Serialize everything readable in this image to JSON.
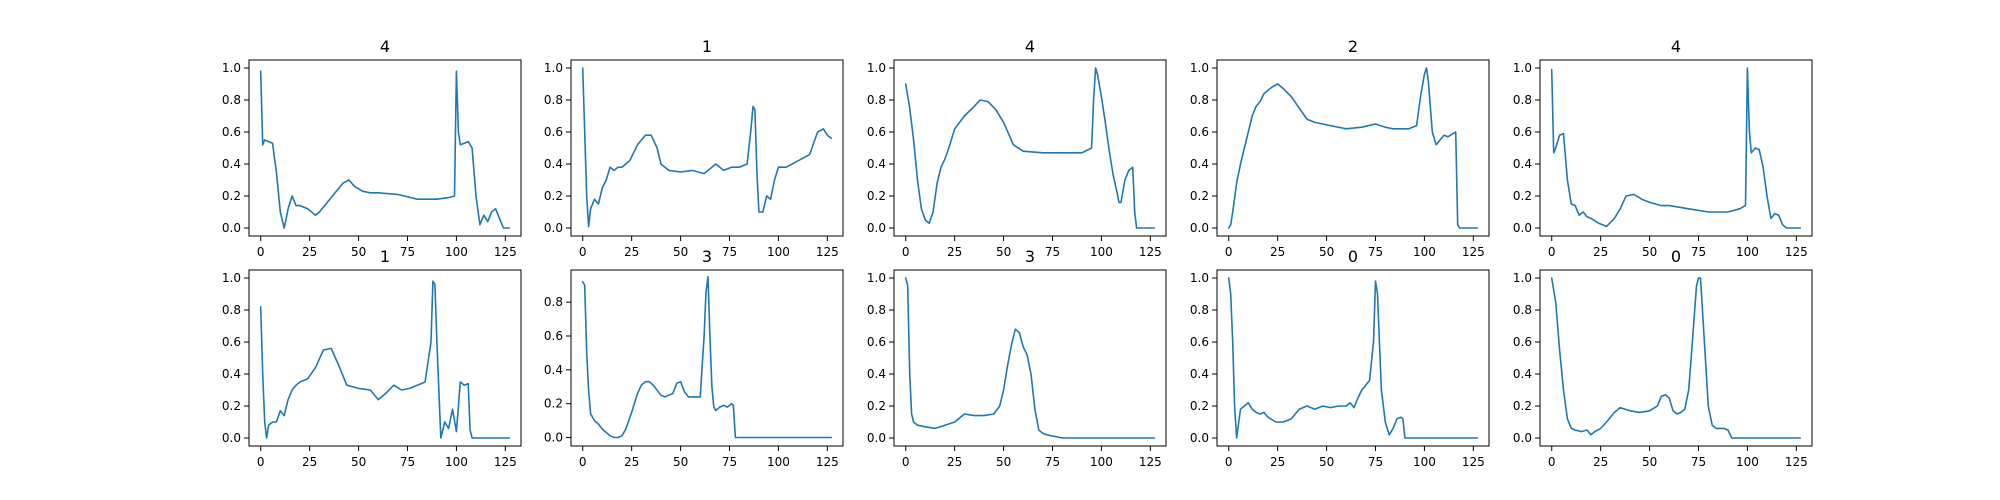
{
  "figure": {
    "line_color": "#1f77b4",
    "background": "#ffffff"
  },
  "chart_data": [
    {
      "type": "line",
      "title": "4",
      "xlim": [
        -6,
        133
      ],
      "ylim": [
        -0.05,
        1.05
      ],
      "xticks": [
        0,
        25,
        50,
        75,
        100,
        125
      ],
      "yticks": [
        0.0,
        0.2,
        0.4,
        0.6,
        0.8,
        1.0
      ],
      "series": [
        {
          "x": [
            0,
            1,
            2,
            4,
            6,
            8,
            10,
            12,
            13,
            14,
            16,
            18,
            20,
            24,
            28,
            30,
            34,
            38,
            42,
            45,
            48,
            52,
            56,
            60,
            70,
            80,
            90,
            96,
            99,
            100,
            101,
            102,
            104,
            106,
            108,
            110,
            112,
            114,
            116,
            118,
            120,
            122,
            124,
            127
          ],
          "y": [
            0.98,
            0.52,
            0.55,
            0.54,
            0.53,
            0.35,
            0.1,
            0.0,
            0.06,
            0.12,
            0.2,
            0.14,
            0.14,
            0.12,
            0.08,
            0.1,
            0.16,
            0.22,
            0.28,
            0.3,
            0.26,
            0.23,
            0.22,
            0.22,
            0.21,
            0.18,
            0.18,
            0.19,
            0.2,
            0.98,
            0.6,
            0.52,
            0.53,
            0.54,
            0.5,
            0.2,
            0.02,
            0.08,
            0.04,
            0.1,
            0.12,
            0.06,
            0.0,
            0.0
          ]
        }
      ]
    },
    {
      "type": "line",
      "title": "1",
      "xlim": [
        -6,
        133
      ],
      "ylim": [
        -0.05,
        1.05
      ],
      "xticks": [
        0,
        25,
        50,
        75,
        100,
        125
      ],
      "yticks": [
        0.0,
        0.2,
        0.4,
        0.6,
        0.8,
        1.0
      ],
      "series": [
        {
          "x": [
            0,
            1,
            2,
            3,
            4,
            6,
            8,
            10,
            12,
            14,
            16,
            18,
            20,
            24,
            28,
            32,
            35,
            38,
            40,
            44,
            50,
            56,
            62,
            68,
            72,
            76,
            80,
            84,
            86,
            87,
            88,
            89,
            90,
            92,
            94,
            96,
            98,
            100,
            104,
            110,
            116,
            120,
            123,
            125,
            127
          ],
          "y": [
            1.0,
            0.6,
            0.2,
            0.01,
            0.12,
            0.18,
            0.15,
            0.25,
            0.3,
            0.38,
            0.36,
            0.38,
            0.38,
            0.42,
            0.52,
            0.58,
            0.58,
            0.5,
            0.4,
            0.36,
            0.35,
            0.36,
            0.34,
            0.4,
            0.36,
            0.38,
            0.38,
            0.4,
            0.62,
            0.76,
            0.74,
            0.35,
            0.1,
            0.1,
            0.2,
            0.18,
            0.3,
            0.38,
            0.38,
            0.42,
            0.46,
            0.6,
            0.62,
            0.58,
            0.56
          ]
        }
      ]
    },
    {
      "type": "line",
      "title": "4",
      "xlim": [
        -6,
        133
      ],
      "ylim": [
        -0.05,
        1.05
      ],
      "xticks": [
        0,
        25,
        50,
        75,
        100,
        125
      ],
      "yticks": [
        0.0,
        0.2,
        0.4,
        0.6,
        0.8,
        1.0
      ],
      "series": [
        {
          "x": [
            0,
            2,
            4,
            6,
            8,
            10,
            12,
            14,
            16,
            18,
            20,
            22,
            25,
            30,
            35,
            38,
            42,
            46,
            50,
            55,
            60,
            70,
            80,
            90,
            95,
            96,
            97,
            98,
            100,
            102,
            104,
            106,
            108,
            109,
            110,
            112,
            114,
            116,
            117,
            118,
            120,
            124,
            127
          ],
          "y": [
            0.9,
            0.75,
            0.55,
            0.3,
            0.12,
            0.05,
            0.03,
            0.1,
            0.28,
            0.38,
            0.43,
            0.5,
            0.62,
            0.7,
            0.76,
            0.8,
            0.79,
            0.74,
            0.66,
            0.52,
            0.48,
            0.47,
            0.47,
            0.47,
            0.5,
            0.8,
            1.0,
            0.96,
            0.82,
            0.66,
            0.48,
            0.33,
            0.22,
            0.16,
            0.16,
            0.3,
            0.36,
            0.38,
            0.1,
            0.0,
            0.0,
            0.0,
            0.0
          ]
        }
      ]
    },
    {
      "type": "line",
      "title": "2",
      "xlim": [
        -6,
        133
      ],
      "ylim": [
        -0.05,
        1.05
      ],
      "xticks": [
        0,
        25,
        50,
        75,
        100,
        125
      ],
      "yticks": [
        0.0,
        0.2,
        0.4,
        0.6,
        0.8,
        1.0
      ],
      "series": [
        {
          "x": [
            0,
            1,
            2,
            4,
            6,
            8,
            10,
            12,
            14,
            16,
            18,
            20,
            22,
            25,
            28,
            32,
            36,
            40,
            44,
            48,
            52,
            60,
            68,
            75,
            80,
            84,
            88,
            92,
            96,
            98,
            100,
            101,
            102,
            104,
            106,
            110,
            112,
            116,
            117,
            118,
            120,
            124,
            127
          ],
          "y": [
            0.0,
            0.02,
            0.1,
            0.28,
            0.4,
            0.5,
            0.6,
            0.7,
            0.76,
            0.79,
            0.84,
            0.86,
            0.88,
            0.9,
            0.87,
            0.82,
            0.75,
            0.68,
            0.66,
            0.65,
            0.64,
            0.62,
            0.63,
            0.65,
            0.63,
            0.62,
            0.62,
            0.62,
            0.64,
            0.82,
            0.96,
            1.0,
            0.92,
            0.6,
            0.52,
            0.58,
            0.57,
            0.6,
            0.02,
            0.0,
            0.0,
            0.0,
            0.0
          ]
        }
      ]
    },
    {
      "type": "line",
      "title": "4",
      "xlim": [
        -6,
        133
      ],
      "ylim": [
        -0.05,
        1.05
      ],
      "xticks": [
        0,
        25,
        50,
        75,
        100,
        125
      ],
      "yticks": [
        0.0,
        0.2,
        0.4,
        0.6,
        0.8,
        1.0
      ],
      "series": [
        {
          "x": [
            0,
            1,
            2,
            4,
            6,
            8,
            10,
            12,
            14,
            16,
            18,
            20,
            24,
            28,
            32,
            35,
            38,
            42,
            46,
            50,
            56,
            60,
            70,
            80,
            90,
            96,
            99,
            100,
            101,
            102,
            104,
            106,
            108,
            110,
            112,
            114,
            116,
            118,
            120,
            124,
            127
          ],
          "y": [
            0.99,
            0.47,
            0.5,
            0.58,
            0.59,
            0.3,
            0.15,
            0.14,
            0.08,
            0.1,
            0.07,
            0.06,
            0.03,
            0.01,
            0.06,
            0.12,
            0.2,
            0.21,
            0.18,
            0.16,
            0.14,
            0.14,
            0.12,
            0.1,
            0.1,
            0.12,
            0.14,
            1.0,
            0.6,
            0.47,
            0.5,
            0.49,
            0.38,
            0.2,
            0.06,
            0.09,
            0.08,
            0.02,
            0.0,
            0.0,
            0.0
          ]
        }
      ]
    },
    {
      "type": "line",
      "title": "1",
      "xlim": [
        -6,
        133
      ],
      "ylim": [
        -0.05,
        1.05
      ],
      "xticks": [
        0,
        25,
        50,
        75,
        100,
        125
      ],
      "yticks": [
        0.0,
        0.2,
        0.4,
        0.6,
        0.8,
        1.0
      ],
      "series": [
        {
          "x": [
            0,
            1,
            2,
            3,
            4,
            6,
            8,
            10,
            12,
            14,
            16,
            18,
            20,
            24,
            28,
            32,
            36,
            40,
            44,
            50,
            56,
            60,
            64,
            68,
            72,
            76,
            80,
            84,
            87,
            88,
            89,
            90,
            92,
            94,
            96,
            98,
            100,
            102,
            104,
            106,
            107,
            108,
            110,
            120,
            127
          ],
          "y": [
            0.82,
            0.4,
            0.1,
            0.0,
            0.08,
            0.1,
            0.1,
            0.17,
            0.14,
            0.24,
            0.3,
            0.33,
            0.35,
            0.37,
            0.44,
            0.55,
            0.56,
            0.45,
            0.33,
            0.31,
            0.3,
            0.24,
            0.28,
            0.33,
            0.3,
            0.31,
            0.33,
            0.35,
            0.6,
            0.98,
            0.96,
            0.6,
            0.0,
            0.1,
            0.06,
            0.18,
            0.04,
            0.35,
            0.33,
            0.34,
            0.05,
            0.0,
            0.0,
            0.0,
            0.0
          ]
        }
      ]
    },
    {
      "type": "line",
      "title": "3",
      "xlim": [
        -6,
        133
      ],
      "ylim": [
        -0.05,
        0.99
      ],
      "xticks": [
        0,
        25,
        50,
        75,
        100,
        125
      ],
      "yticks": [
        0.0,
        0.2,
        0.4,
        0.6,
        0.8
      ],
      "series": [
        {
          "x": [
            0,
            1,
            2,
            3,
            4,
            6,
            8,
            10,
            12,
            14,
            16,
            18,
            20,
            22,
            25,
            28,
            30,
            32,
            34,
            36,
            38,
            40,
            42,
            44,
            46,
            48,
            50,
            52,
            54,
            56,
            58,
            60,
            62,
            63,
            64,
            65,
            66,
            67,
            68,
            70,
            72,
            74,
            76,
            77,
            78,
            80,
            90,
            100,
            110,
            127
          ],
          "y": [
            0.92,
            0.9,
            0.5,
            0.28,
            0.14,
            0.1,
            0.08,
            0.05,
            0.03,
            0.01,
            0.0,
            0.0,
            0.01,
            0.05,
            0.15,
            0.26,
            0.31,
            0.33,
            0.33,
            0.31,
            0.28,
            0.25,
            0.24,
            0.25,
            0.26,
            0.32,
            0.33,
            0.27,
            0.24,
            0.24,
            0.24,
            0.24,
            0.6,
            0.86,
            0.95,
            0.6,
            0.3,
            0.18,
            0.16,
            0.18,
            0.19,
            0.18,
            0.2,
            0.19,
            0.0,
            0.0,
            0.0,
            0.0,
            0.0,
            0.0
          ]
        }
      ]
    },
    {
      "type": "line",
      "title": "3",
      "xlim": [
        -6,
        133
      ],
      "ylim": [
        -0.05,
        1.05
      ],
      "xticks": [
        0,
        25,
        50,
        75,
        100,
        125
      ],
      "yticks": [
        0.0,
        0.2,
        0.4,
        0.6,
        0.8,
        1.0
      ],
      "series": [
        {
          "x": [
            0,
            1,
            2,
            3,
            4,
            6,
            10,
            15,
            20,
            25,
            30,
            35,
            40,
            45,
            48,
            50,
            52,
            54,
            56,
            58,
            60,
            62,
            64,
            66,
            68,
            70,
            72,
            76,
            80,
            90,
            100,
            110,
            120,
            127
          ],
          "y": [
            1.0,
            0.95,
            0.4,
            0.15,
            0.1,
            0.08,
            0.07,
            0.06,
            0.08,
            0.1,
            0.15,
            0.14,
            0.14,
            0.15,
            0.2,
            0.3,
            0.45,
            0.58,
            0.68,
            0.66,
            0.57,
            0.52,
            0.4,
            0.18,
            0.05,
            0.03,
            0.02,
            0.01,
            0.0,
            0.0,
            0.0,
            0.0,
            0.0,
            0.0
          ]
        }
      ]
    },
    {
      "type": "line",
      "title": "0",
      "xlim": [
        -6,
        133
      ],
      "ylim": [
        -0.05,
        1.05
      ],
      "xticks": [
        0,
        25,
        50,
        75,
        100,
        125
      ],
      "yticks": [
        0.0,
        0.2,
        0.4,
        0.6,
        0.8,
        1.0
      ],
      "series": [
        {
          "x": [
            0,
            1,
            2,
            3,
            4,
            6,
            8,
            10,
            12,
            14,
            16,
            18,
            20,
            24,
            28,
            32,
            36,
            40,
            44,
            48,
            52,
            56,
            60,
            62,
            64,
            66,
            68,
            70,
            72,
            74,
            75,
            76,
            77,
            78,
            80,
            82,
            84,
            86,
            88,
            89,
            90,
            100,
            110,
            120,
            127
          ],
          "y": [
            1.0,
            0.9,
            0.6,
            0.2,
            0.0,
            0.18,
            0.2,
            0.22,
            0.18,
            0.16,
            0.15,
            0.16,
            0.13,
            0.1,
            0.1,
            0.12,
            0.18,
            0.2,
            0.18,
            0.2,
            0.19,
            0.2,
            0.2,
            0.22,
            0.19,
            0.25,
            0.3,
            0.33,
            0.36,
            0.6,
            0.98,
            0.9,
            0.6,
            0.3,
            0.1,
            0.02,
            0.06,
            0.12,
            0.13,
            0.12,
            0.0,
            0.0,
            0.0,
            0.0,
            0.0
          ]
        }
      ]
    },
    {
      "type": "line",
      "title": "0",
      "xlim": [
        -6,
        133
      ],
      "ylim": [
        -0.05,
        1.05
      ],
      "xticks": [
        0,
        25,
        50,
        75,
        100,
        125
      ],
      "yticks": [
        0.0,
        0.2,
        0.4,
        0.6,
        0.8,
        1.0
      ],
      "series": [
        {
          "x": [
            0,
            2,
            4,
            6,
            8,
            10,
            12,
            15,
            18,
            20,
            22,
            25,
            28,
            32,
            35,
            40,
            45,
            50,
            54,
            56,
            58,
            60,
            62,
            64,
            66,
            68,
            70,
            72,
            74,
            75,
            76,
            78,
            80,
            82,
            84,
            86,
            88,
            90,
            92,
            94,
            96,
            100,
            110,
            120,
            127
          ],
          "y": [
            1.0,
            0.85,
            0.55,
            0.3,
            0.12,
            0.06,
            0.05,
            0.04,
            0.05,
            0.02,
            0.04,
            0.06,
            0.1,
            0.16,
            0.19,
            0.17,
            0.16,
            0.17,
            0.2,
            0.26,
            0.27,
            0.25,
            0.17,
            0.15,
            0.16,
            0.18,
            0.3,
            0.62,
            0.95,
            1.0,
            1.0,
            0.6,
            0.2,
            0.08,
            0.06,
            0.06,
            0.06,
            0.05,
            0.0,
            0.0,
            0.0,
            0.0,
            0.0,
            0.0,
            0.0
          ]
        }
      ]
    }
  ]
}
